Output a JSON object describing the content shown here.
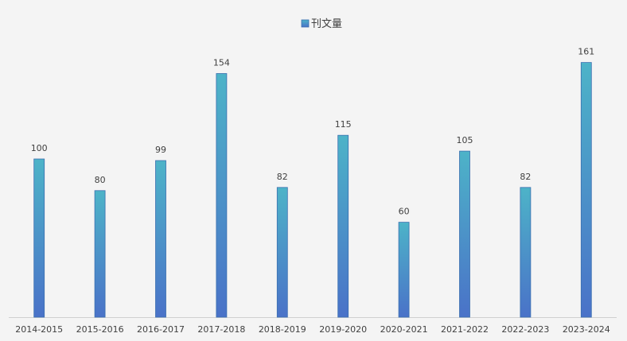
{
  "chart_data": {
    "type": "bar",
    "categories": [
      "2014-2015",
      "2015-2016",
      "2016-2017",
      "2017-2018",
      "2018-2019",
      "2019-2020",
      "2020-2021",
      "2021-2022",
      "2022-2023",
      "2023-2024"
    ],
    "series": [
      {
        "name": "刊文量",
        "values": [
          100,
          80,
          99,
          154,
          82,
          115,
          60,
          105,
          82,
          161
        ]
      }
    ],
    "title": "",
    "xlabel": "",
    "ylabel": "",
    "ylim": [
      0,
      170
    ],
    "grid": false,
    "legend_position": "top-center",
    "data_labels": true,
    "colors": {
      "bar_top": "#4db3c8",
      "bar_bottom": "#4a72c8",
      "bar_stroke": "#3a6fb0",
      "axis": "#d0d0d0",
      "background": "#f4f4f4"
    }
  }
}
